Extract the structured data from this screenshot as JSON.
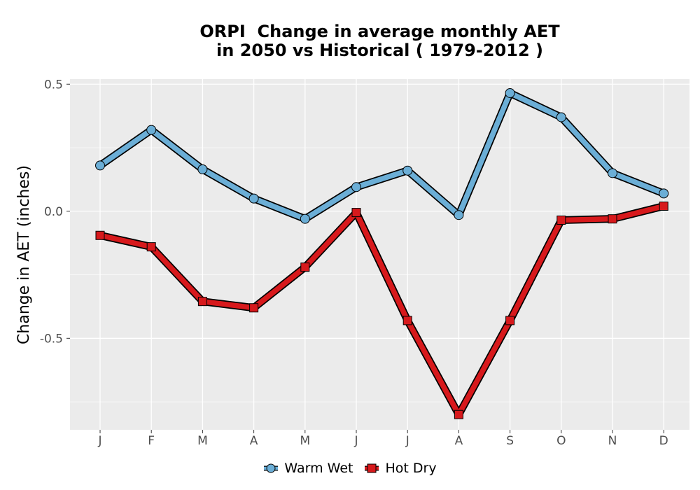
{
  "chart_data": {
    "type": "line",
    "title_line1": "ORPI  Change in average monthly AET",
    "title_line2": "in 2050 vs Historical ( 1979-2012 )",
    "xlabel": "",
    "ylabel": "Change in AET (inches)",
    "categories": [
      "J",
      "F",
      "M",
      "A",
      "M",
      "J",
      "J",
      "A",
      "S",
      "O",
      "N",
      "D"
    ],
    "yticks": [
      0.5,
      0.0,
      -0.5
    ],
    "ytick_labels": [
      "0.5",
      "0.0",
      "-0.5"
    ],
    "ylim": [
      -0.86,
      0.52
    ],
    "grid": true,
    "legend_position": "bottom",
    "series": [
      {
        "name": "Warm Wet",
        "marker": "circle",
        "color": "#6baed6",
        "values": [
          0.18,
          0.32,
          0.165,
          0.05,
          -0.03,
          0.095,
          0.16,
          -0.015,
          0.465,
          0.37,
          0.15,
          0.07
        ]
      },
      {
        "name": "Hot Dry",
        "marker": "square",
        "color": "#d7191c",
        "values": [
          -0.095,
          -0.14,
          -0.355,
          -0.38,
          -0.22,
          -0.005,
          -0.43,
          -0.8,
          -0.43,
          -0.035,
          -0.03,
          0.02
        ]
      }
    ]
  }
}
